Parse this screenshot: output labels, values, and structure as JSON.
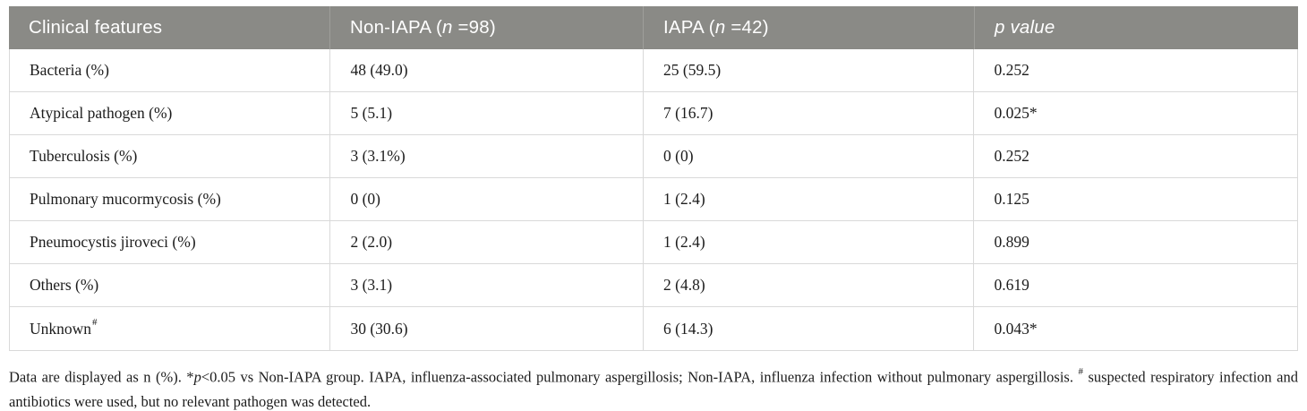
{
  "table": {
    "columns": [
      {
        "label": "Clinical features"
      },
      {
        "prefix": "Non-IAPA (",
        "italic": "n",
        "suffix": " =98)"
      },
      {
        "prefix": "IAPA (",
        "italic": "n",
        "suffix": " =42)"
      },
      {
        "italic": "p",
        "suffix": " value"
      }
    ],
    "rows": [
      {
        "feature": "Bacteria (%)",
        "non_iapa": "48 (49.0)",
        "iapa": "25 (59.5)",
        "p_value": "0.252"
      },
      {
        "feature": "Atypical pathogen (%)",
        "non_iapa": "5 (5.1)",
        "iapa": "7 (16.7)",
        "p_value": "0.025*"
      },
      {
        "feature": "Tuberculosis (%)",
        "non_iapa": "3 (3.1%)",
        "iapa": "0 (0)",
        "p_value": "0.252"
      },
      {
        "feature": "Pulmonary mucormycosis (%)",
        "non_iapa": "0 (0)",
        "iapa": "1 (2.4)",
        "p_value": "0.125"
      },
      {
        "feature": "Pneumocystis jiroveci (%)",
        "non_iapa": "2 (2.0)",
        "iapa": "1 (2.4)",
        "p_value": "0.899"
      },
      {
        "feature": "Others (%)",
        "non_iapa": "3 (3.1)",
        "iapa": "2 (4.8)",
        "p_value": "0.619"
      },
      {
        "feature": "Unknown",
        "feature_sup": "#",
        "non_iapa": "30 (30.6)",
        "iapa": "6 (14.3)",
        "p_value": "0.043*"
      }
    ]
  },
  "footnote": {
    "part1": "Data are displayed as n (%). *",
    "p_italic": "p",
    "part2": "<0.05 vs Non-IAPA group. IAPA, influenza-associated pulmonary aspergillosis; Non-IAPA, influenza infection without pulmonary aspergillosis. ",
    "hash": "#",
    "part3": " suspected respiratory infection and antibiotics were used, but no relevant pathogen was detected."
  },
  "colors": {
    "header_bg": "#8a8a86",
    "header_text": "#ffffff",
    "border": "#d9d9d9",
    "body_text": "#1c1c1c"
  }
}
